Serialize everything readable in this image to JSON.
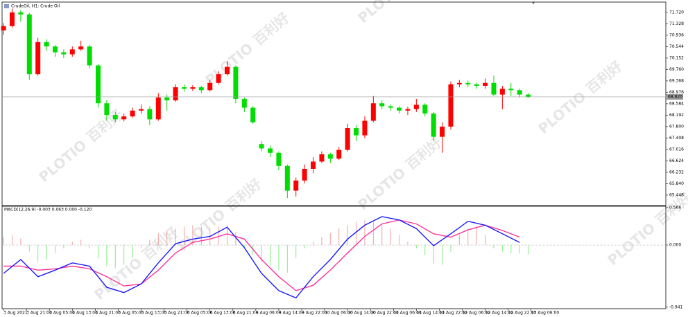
{
  "chart_data": [
    {
      "type": "candlestick",
      "title": "CrudeOil, H1: Crude Oil",
      "x": [
        0,
        3,
        6,
        9,
        12,
        15,
        18,
        21,
        24,
        27,
        30,
        33,
        36,
        39,
        42,
        45,
        48,
        51,
        54,
        57,
        60,
        63,
        66,
        69,
        72,
        75,
        78,
        81,
        84,
        87,
        90,
        93,
        96,
        99,
        102,
        105,
        108,
        111,
        114,
        117,
        120,
        123,
        126,
        129,
        132,
        135,
        138,
        141,
        144,
        147,
        150,
        153,
        156,
        159,
        162,
        165,
        168,
        171,
        174,
        177,
        180,
        183
      ],
      "open": [
        71.1,
        71.25,
        71.72,
        71.65,
        69.6,
        70.7,
        70.55,
        70.35,
        70.28,
        70.45,
        70.55,
        69.9,
        68.6,
        68.2,
        68.05,
        68.15,
        68.35,
        68.4,
        68.05,
        68.8,
        68.7,
        69.15,
        69.1,
        69.15,
        69.05,
        69.3,
        69.6,
        69.85,
        68.75,
        68.45,
        67.2,
        67.05,
        66.9,
        66.45,
        65.6,
        65.95,
        66.35,
        66.6,
        66.85,
        66.7,
        67.0,
        67.75,
        67.5,
        68.0,
        68.6,
        68.5,
        68.45,
        68.35,
        68.4,
        68.55,
        68.25,
        67.45,
        67.8,
        69.25,
        69.3,
        69.25,
        69.2,
        69.3,
        68.9,
        69.1,
        69.05,
        68.9
      ],
      "high": [
        71.35,
        71.85,
        71.8,
        71.7,
        70.85,
        70.8,
        70.6,
        70.45,
        70.55,
        70.75,
        70.6,
        69.95,
        68.7,
        68.3,
        68.25,
        68.45,
        68.55,
        68.5,
        68.95,
        68.9,
        69.25,
        69.25,
        69.22,
        69.2,
        69.4,
        69.7,
        70.05,
        69.9,
        68.8,
        68.5,
        67.3,
        67.15,
        66.95,
        66.5,
        66.05,
        66.5,
        66.75,
        66.95,
        66.9,
        67.1,
        67.9,
        67.85,
        68.15,
        68.85,
        68.7,
        68.55,
        68.5,
        68.48,
        68.75,
        68.6,
        68.3,
        67.95,
        69.35,
        69.4,
        69.38,
        69.3,
        69.45,
        69.55,
        69.2,
        69.3,
        69.1,
        68.95
      ],
      "low": [
        70.95,
        71.2,
        71.4,
        69.4,
        69.55,
        70.4,
        70.2,
        70.15,
        70.2,
        70.4,
        69.8,
        68.45,
        68.0,
        67.95,
        67.98,
        68.1,
        68.25,
        67.85,
        68.0,
        68.35,
        68.65,
        69.0,
        69.02,
        68.95,
        69.0,
        69.25,
        69.55,
        68.6,
        68.3,
        67.9,
        66.95,
        66.75,
        66.3,
        65.35,
        65.4,
        65.85,
        66.2,
        66.55,
        66.55,
        66.65,
        66.95,
        67.3,
        67.4,
        67.95,
        68.4,
        68.35,
        68.25,
        68.2,
        68.3,
        68.15,
        67.3,
        66.9,
        67.7,
        69.15,
        69.15,
        69.1,
        69.1,
        68.85,
        68.4,
        68.85,
        68.8,
        68.78
      ],
      "close": [
        71.25,
        71.72,
        71.65,
        69.6,
        70.7,
        70.55,
        70.35,
        70.28,
        70.45,
        70.55,
        69.9,
        68.6,
        68.2,
        68.05,
        68.15,
        68.35,
        68.4,
        68.05,
        68.8,
        68.7,
        69.15,
        69.1,
        69.15,
        69.05,
        69.3,
        69.6,
        69.85,
        68.75,
        68.45,
        67.95,
        67.05,
        66.9,
        66.45,
        65.6,
        65.95,
        66.35,
        66.6,
        66.85,
        66.7,
        67.0,
        67.75,
        67.5,
        68.0,
        68.6,
        68.5,
        68.45,
        68.35,
        68.4,
        68.55,
        68.25,
        67.45,
        67.8,
        69.25,
        69.3,
        69.25,
        69.2,
        69.3,
        68.9,
        69.1,
        69.05,
        68.9,
        68.82
      ],
      "up_color": "#ff0000",
      "down_color": "#00dd00",
      "xlim": [
        -0.5,
        231
      ],
      "ylim": [
        65.09,
        72.05
      ],
      "yticks": [
        {
          "value": 71.72,
          "label": "71.720"
        },
        {
          "value": 71.328,
          "label": "71.328"
        },
        {
          "value": 70.936,
          "label": "70.936"
        },
        {
          "value": 70.544,
          "label": "70.544"
        },
        {
          "value": 70.152,
          "label": "70.152"
        },
        {
          "value": 69.76,
          "label": "69.760"
        },
        {
          "value": 69.368,
          "label": "69.368"
        },
        {
          "value": 68.976,
          "label": "68.976"
        },
        {
          "value": 68.584,
          "label": "68.584"
        },
        {
          "value": 68.192,
          "label": "68.192"
        },
        {
          "value": 67.8,
          "label": "67.800"
        },
        {
          "value": 67.408,
          "label": "67.408"
        },
        {
          "value": 67.016,
          "label": "67.016"
        },
        {
          "value": 66.624,
          "label": "66.624"
        },
        {
          "value": 66.232,
          "label": "66.232"
        },
        {
          "value": 65.84,
          "label": "65.840"
        },
        {
          "value": 65.448,
          "label": "65.448"
        }
      ],
      "last_price": {
        "value": 68.82,
        "label": "68.820"
      }
    },
    {
      "type": "macd",
      "title": "MACD(12,26,9) -0.003 0.063 0.000 -0.120",
      "x": [
        0,
        3,
        6,
        9,
        12,
        15,
        18,
        21,
        24,
        27,
        30,
        33,
        36,
        39,
        42,
        45,
        48,
        51,
        54,
        57,
        60,
        63,
        66,
        69,
        72,
        75,
        78,
        81,
        84,
        87,
        90,
        93,
        96,
        99,
        102,
        105,
        108,
        111,
        114,
        117,
        120,
        123,
        126,
        129,
        132,
        135,
        138,
        141,
        144,
        147,
        150,
        153,
        156,
        159,
        162,
        165,
        168,
        171,
        174,
        177,
        180,
        183
      ],
      "histogram": {
        "values": [
          0.12,
          0.15,
          0.1,
          -0.1,
          -0.25,
          -0.22,
          -0.12,
          -0.05,
          0.05,
          0.08,
          -0.05,
          -0.2,
          -0.32,
          -0.35,
          -0.3,
          -0.2,
          -0.05,
          0.08,
          0.18,
          0.22,
          0.25,
          0.28,
          0.3,
          0.28,
          0.25,
          0.28,
          0.3,
          0.2,
          -0.05,
          -0.15,
          -0.25,
          -0.32,
          -0.38,
          -0.42,
          -0.2,
          -0.05,
          0.05,
          0.12,
          0.18,
          0.25,
          0.3,
          0.35,
          0.38,
          0.35,
          0.3,
          0.25,
          0.15,
          0.05,
          -0.05,
          -0.15,
          -0.28,
          -0.3,
          -0.1,
          0.15,
          0.25,
          0.28,
          0.15,
          -0.05,
          -0.1,
          -0.12,
          -0.13,
          -0.14
        ],
        "up_color": "#f4a0a0",
        "down_color": "#7fef7f"
      },
      "line_x": [
        0,
        6,
        12,
        18,
        24,
        30,
        36,
        42,
        48,
        54,
        60,
        66,
        72,
        78,
        84,
        90,
        96,
        102,
        108,
        114,
        120,
        126,
        132,
        138,
        144,
        150,
        156,
        162,
        168,
        174,
        180
      ],
      "macd": {
        "values": [
          -0.43,
          -0.22,
          -0.48,
          -0.38,
          -0.27,
          -0.32,
          -0.64,
          -0.72,
          -0.59,
          -0.27,
          0.02,
          0.09,
          0.13,
          0.27,
          -0.04,
          -0.43,
          -0.69,
          -0.8,
          -0.48,
          -0.22,
          0.09,
          0.3,
          0.43,
          0.38,
          0.25,
          -0.01,
          0.17,
          0.36,
          0.3,
          0.17,
          0.04
        ],
        "color": "#1a1aff"
      },
      "signal": {
        "values": [
          -0.32,
          -0.32,
          -0.38,
          -0.36,
          -0.32,
          -0.36,
          -0.48,
          -0.62,
          -0.59,
          -0.38,
          -0.12,
          0.04,
          0.09,
          0.17,
          0.09,
          -0.22,
          -0.48,
          -0.69,
          -0.61,
          -0.38,
          -0.12,
          0.13,
          0.32,
          0.38,
          0.32,
          0.17,
          0.12,
          0.23,
          0.3,
          0.22,
          0.12
        ],
        "color": "#ff3399"
      },
      "xlim": [
        -0.5,
        231
      ],
      "ylim": [
        -0.964,
        0.587
      ],
      "yticks": [
        0.566,
        {
          "value": 0,
          "label": "0.000"
        },
        -0.941
      ],
      "xticks": [
        {
          "value": 0,
          "label": "3 Aug 2021"
        },
        {
          "value": 8,
          "label": "3 Aug 21:00"
        },
        {
          "value": 16,
          "label": "4 Aug 05:00"
        },
        {
          "value": 24,
          "label": "4 Aug 13:00"
        },
        {
          "value": 32,
          "label": "4 Aug 21:00"
        },
        {
          "value": 40,
          "label": "5 Aug 05:00"
        },
        {
          "value": 48,
          "label": "5 Aug 13:00"
        },
        {
          "value": 56,
          "label": "5 Aug 21:00"
        },
        {
          "value": 64,
          "label": "6 Aug 05:00"
        },
        {
          "value": 72,
          "label": "6 Aug 13:00"
        },
        {
          "value": 80,
          "label": "6 Aug 21:00"
        },
        {
          "value": 88,
          "label": "9 Aug 06:00"
        },
        {
          "value": 96,
          "label": "9 Aug 14:00"
        },
        {
          "value": 104,
          "label": "9 Aug 22:00"
        },
        {
          "value": 112,
          "label": "10 Aug 06:00"
        },
        {
          "value": 120,
          "label": "10 Aug 14:00"
        },
        {
          "value": 128,
          "label": "10 Aug 22:00"
        },
        {
          "value": 136,
          "label": "11 Aug 06:00"
        },
        {
          "value": 144,
          "label": "11 Aug 14:00"
        },
        {
          "value": 152,
          "label": "11 Aug 22:00"
        },
        {
          "value": 160,
          "label": "12 Aug 06:00"
        },
        {
          "value": 168,
          "label": "12 Aug 14:00"
        },
        {
          "value": 176,
          "label": "12 Aug 22:00"
        },
        {
          "value": 184,
          "label": "13 Aug 06:00"
        }
      ]
    }
  ],
  "watermark": {
    "brand": "PLOTIO",
    "text": "百利好"
  }
}
